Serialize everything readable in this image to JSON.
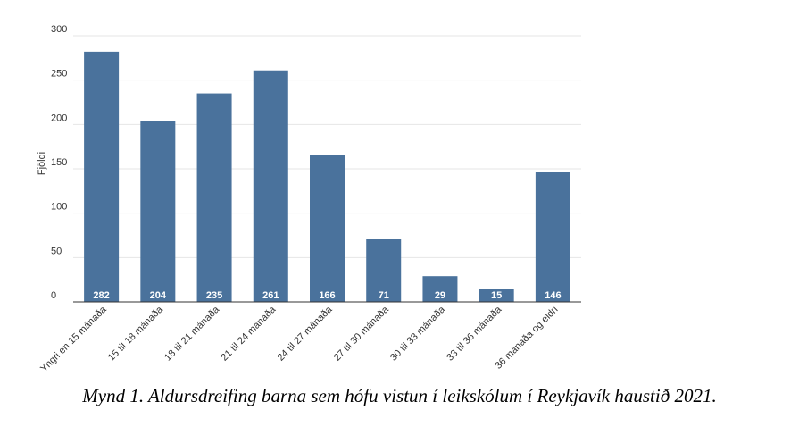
{
  "chart_data": {
    "type": "bar",
    "categories": [
      "Yngri en 15 mánaða",
      "15 til 18 mánaða",
      "18 til 21 mánaða",
      "21 til 24 mánaða",
      "24 til 27 mánaða",
      "27 til 30 mánaða",
      "30 til 33 mánaða",
      "33 til 36 mánaða",
      "36 mánaða og eldri"
    ],
    "values": [
      282,
      204,
      235,
      261,
      166,
      71,
      29,
      15,
      146
    ],
    "ylabel": "Fjöldi",
    "xlabel": "",
    "ylim": [
      0,
      300
    ],
    "yticks": [
      0,
      50,
      100,
      150,
      200,
      250,
      300
    ],
    "grid": true,
    "bar_color": "#4a729c",
    "data_labels": true
  },
  "caption": "Mynd 1. Aldursdreifing barna sem hófu vistun í leikskólum í Reykjavík haustið 2021."
}
